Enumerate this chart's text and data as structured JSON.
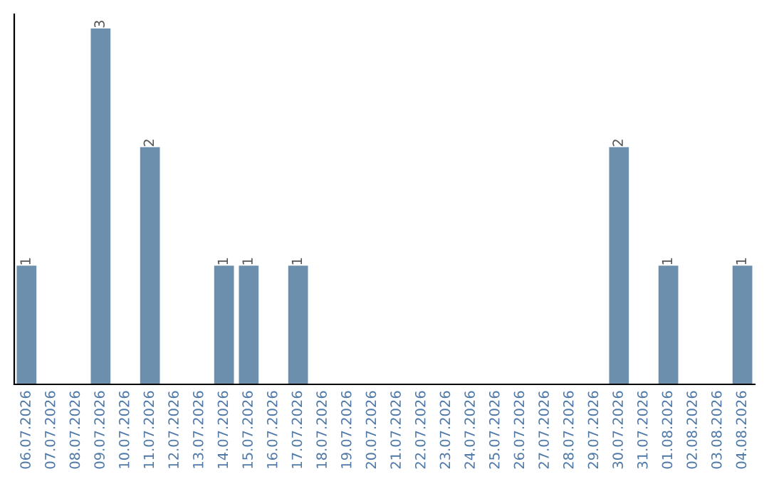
{
  "chart_data": {
    "type": "bar",
    "categories": [
      "06.07.2026",
      "07.07.2026",
      "08.07.2026",
      "09.07.2026",
      "10.07.2026",
      "11.07.2026",
      "12.07.2026",
      "13.07.2026",
      "14.07.2026",
      "15.07.2026",
      "16.07.2026",
      "17.07.2026",
      "18.07.2026",
      "19.07.2026",
      "20.07.2026",
      "21.07.2026",
      "22.07.2026",
      "23.07.2026",
      "24.07.2026",
      "25.07.2026",
      "26.07.2026",
      "27.07.2026",
      "28.07.2026",
      "29.07.2026",
      "30.07.2026",
      "31.07.2026",
      "01.08.2026",
      "02.08.2026",
      "03.08.2026",
      "04.08.2026"
    ],
    "values": [
      1,
      0,
      0,
      3,
      0,
      2,
      0,
      0,
      1,
      1,
      0,
      1,
      0,
      0,
      0,
      0,
      0,
      0,
      0,
      0,
      0,
      0,
      0,
      0,
      2,
      0,
      1,
      0,
      0,
      1
    ],
    "value_labels": [
      "1",
      null,
      null,
      "3",
      null,
      "2",
      null,
      null,
      "1",
      "1",
      null,
      "1",
      null,
      null,
      null,
      null,
      null,
      null,
      null,
      null,
      null,
      null,
      null,
      null,
      "2",
      null,
      "1",
      null,
      null,
      "1"
    ],
    "color": "#6d8fae",
    "grid": false,
    "legend": false
  }
}
